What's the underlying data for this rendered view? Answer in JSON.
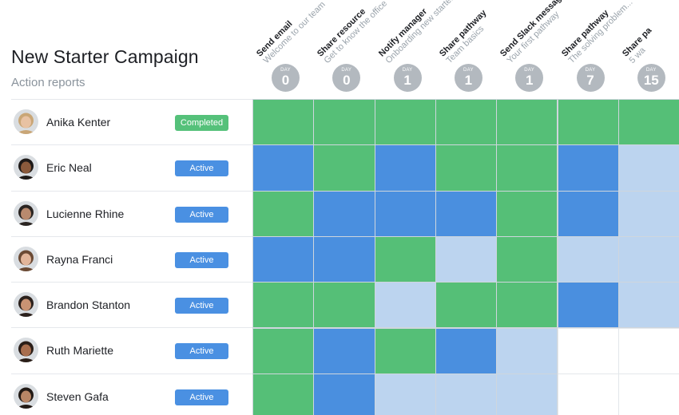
{
  "header": {
    "title": "New Starter Campaign",
    "subtitle": "Action reports"
  },
  "steps": [
    {
      "title": "Send email",
      "desc": "Welcome to our team",
      "day_label": "DAY",
      "day": "0"
    },
    {
      "title": "Share resource",
      "desc": "Get to know the office",
      "day_label": "DAY",
      "day": "0"
    },
    {
      "title": "Notify manager",
      "desc": "Onboarding new starter",
      "day_label": "DAY",
      "day": "1"
    },
    {
      "title": "Share pathway",
      "desc": "Team basics",
      "day_label": "DAY",
      "day": "1"
    },
    {
      "title": "Send Slack message",
      "desc": "Your first pathway",
      "day_label": "DAY",
      "day": "1"
    },
    {
      "title": "Share pathway",
      "desc": "The solving problem...",
      "day_label": "DAY",
      "day": "7"
    },
    {
      "title": "Share pa",
      "desc": "5 wa",
      "day_label": "DAY",
      "day": "15"
    }
  ],
  "people": [
    {
      "name": "Anika Kenter",
      "status": "Completed",
      "avatar_skin": "#e8c2a3",
      "avatar_hair": "#c9a676"
    },
    {
      "name": "Eric Neal",
      "status": "Active",
      "avatar_skin": "#8a5a3c",
      "avatar_hair": "#1e1a18"
    },
    {
      "name": "Lucienne Rhine",
      "status": "Active",
      "avatar_skin": "#b98a6e",
      "avatar_hair": "#2a2421"
    },
    {
      "name": "Rayna Franci",
      "status": "Active",
      "avatar_skin": "#e2b59a",
      "avatar_hair": "#6b4a34"
    },
    {
      "name": "Brandon Stanton",
      "status": "Active",
      "avatar_skin": "#c99373",
      "avatar_hair": "#2b211c"
    },
    {
      "name": "Ruth Mariette",
      "status": "Active",
      "avatar_skin": "#a86e4e",
      "avatar_hair": "#2a1e18"
    },
    {
      "name": "Steven Gafa",
      "status": "Active",
      "avatar_skin": "#b88666",
      "avatar_hair": "#221a15"
    }
  ],
  "status_colors": {
    "Completed": "#55c17a",
    "Active": "#4a90e2"
  },
  "cell_colors": {
    "done": "#55bf77",
    "active": "#4a8fdf",
    "pending": "#bcd4ef",
    "empty": "#ffffff"
  },
  "grid": [
    [
      "done",
      "done",
      "done",
      "done",
      "done",
      "done",
      "done"
    ],
    [
      "active",
      "done",
      "active",
      "done",
      "done",
      "active",
      "pending"
    ],
    [
      "done",
      "active",
      "active",
      "active",
      "done",
      "active",
      "pending"
    ],
    [
      "active",
      "active",
      "done",
      "pending",
      "done",
      "pending",
      "pending"
    ],
    [
      "done",
      "done",
      "pending",
      "done",
      "done",
      "active",
      "pending"
    ],
    [
      "done",
      "active",
      "done",
      "active",
      "pending",
      "empty",
      "empty"
    ],
    [
      "done",
      "active",
      "pending",
      "pending",
      "pending",
      "empty",
      "empty"
    ]
  ]
}
